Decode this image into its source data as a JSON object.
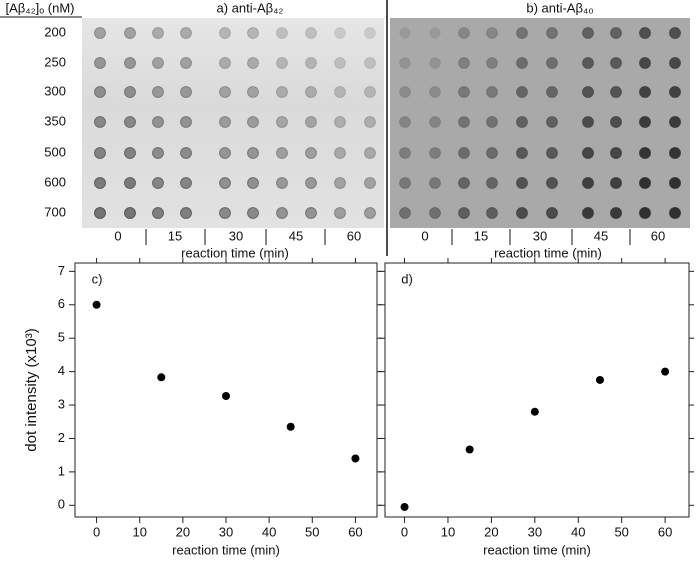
{
  "blots": {
    "concentration_label": "[Aβ₄₂]ₒ (nM)",
    "rows": [
      200,
      250,
      300,
      350,
      500,
      600,
      700
    ],
    "panels": [
      {
        "title": "a)  anti-Aβ₄₂",
        "columns": [
          0,
          15,
          30,
          45,
          60
        ],
        "xlabel": "reaction time (min)"
      },
      {
        "title": "b)  anti-Aβ₄₀",
        "columns": [
          0,
          15,
          30,
          45,
          60
        ],
        "xlabel": "reaction time (min)"
      }
    ]
  },
  "chart_data": [
    {
      "type": "scatter",
      "label": "c)",
      "ylabel": "dot intensity (x10³)",
      "xlabel": "reaction time (min)",
      "x": [
        0,
        15,
        30,
        45,
        60
      ],
      "values": [
        6.0,
        3.83,
        3.27,
        2.35,
        1.4
      ],
      "color": "#000000",
      "xlim": [
        -5,
        65
      ],
      "xticks": [
        0,
        10,
        20,
        30,
        40,
        50,
        60
      ],
      "ylim": [
        -0.35,
        7.25
      ],
      "yticks": [
        0,
        1,
        2,
        3,
        4,
        5,
        6,
        7
      ]
    },
    {
      "type": "scatter",
      "label": "d)",
      "xlabel": "reaction time (min)",
      "x": [
        0,
        15,
        30,
        45,
        60
      ],
      "values": [
        -0.05,
        1.67,
        2.8,
        3.75,
        4.0
      ],
      "color": "#000000",
      "xlim": [
        -4.5,
        65.5
      ],
      "xticks": [
        0,
        10,
        20,
        30,
        40,
        50,
        60
      ],
      "ylim": [
        -0.35,
        7.25
      ],
      "yticks": [
        0,
        1,
        2,
        3,
        4,
        5,
        6,
        7
      ],
      "ytick_labels": false
    }
  ]
}
